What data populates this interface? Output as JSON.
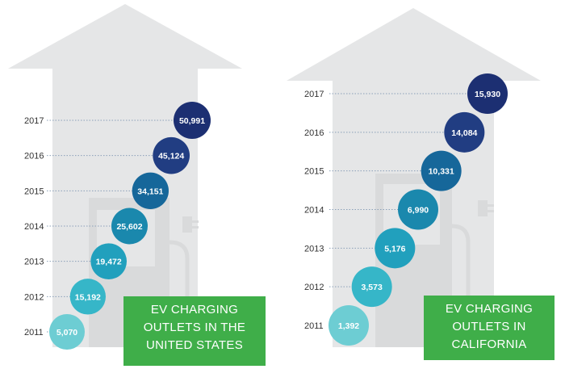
{
  "chart_data": [
    {
      "type": "bubble-timeline",
      "title_lines": [
        "EV CHARGING",
        "OUTLETS IN THE",
        "UNITED STATES"
      ],
      "categories": [
        "2011",
        "2012",
        "2013",
        "2014",
        "2015",
        "2016",
        "2017"
      ],
      "values": [
        5070,
        15192,
        19472,
        25602,
        34151,
        45124,
        50991
      ],
      "value_labels": [
        "5,070",
        "15,192",
        "19,472",
        "25,602",
        "34,151",
        "45,124",
        "50,991"
      ],
      "colors": [
        "#6dcdd3",
        "#36b6c8",
        "#21a0bd",
        "#1a88ad",
        "#16679a",
        "#213d82",
        "#1c2f72"
      ]
    },
    {
      "type": "bubble-timeline",
      "title_lines": [
        "EV CHARGING",
        "OUTLETS IN",
        "CALIFORNIA"
      ],
      "categories": [
        "2011",
        "2012",
        "2013",
        "2014",
        "2015",
        "2016",
        "2017"
      ],
      "values": [
        1392,
        3573,
        5176,
        6990,
        10331,
        14084,
        15930
      ],
      "value_labels": [
        "1,392",
        "3,573",
        "5,176",
        "6,990",
        "10,331",
        "14,084",
        "15,930"
      ],
      "colors": [
        "#6dcdd3",
        "#36b6c8",
        "#21a0bd",
        "#1a88ad",
        "#16679a",
        "#213d82",
        "#1c2f72"
      ]
    }
  ]
}
